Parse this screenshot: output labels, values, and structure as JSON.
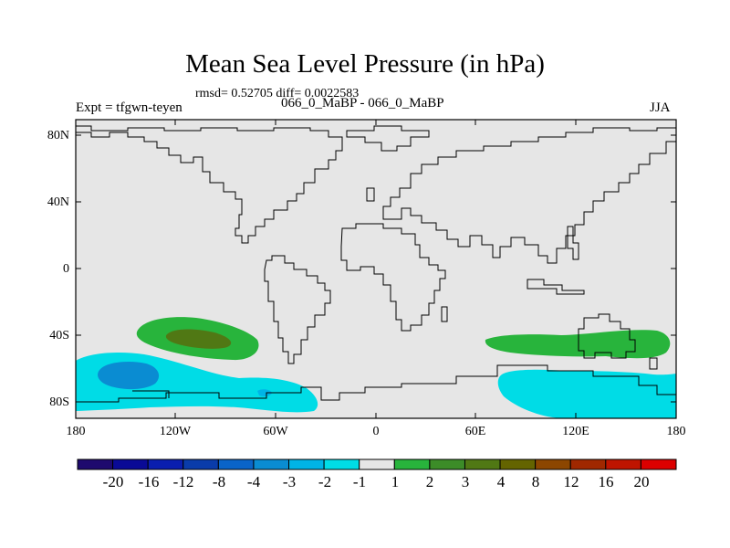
{
  "figure": {
    "title": "Mean Sea Level Pressure (in hPa)",
    "stats": "rmsd= 0.52705 diff= 0.0022583",
    "experiment": "Expt = tfgwn-teyen",
    "cases": "066_0_MaBP - 066_0_MaBP",
    "season": "JJA"
  },
  "axes": {
    "lat_ticks": [
      "80N",
      "40N",
      "0",
      "40S",
      "80S"
    ],
    "lon_ticks": [
      "180",
      "120W",
      "60W",
      "0",
      "60E",
      "120E",
      "180"
    ]
  },
  "colorbar": {
    "labels": [
      "-20",
      "-16",
      "-12",
      "-8",
      "-4",
      "-3",
      "-2",
      "-1",
      "1",
      "2",
      "3",
      "4",
      "8",
      "12",
      "16",
      "20"
    ],
    "colors": [
      "#1e0a6e",
      "#0a0a96",
      "#0a1eaf",
      "#0a3caa",
      "#0a64c8",
      "#0a8cd2",
      "#00b4e6",
      "#00dce6",
      "#e6e6e6",
      "#28b43c",
      "#3c8c28",
      "#507814",
      "#646400",
      "#8c4600",
      "#a02800",
      "#be1400",
      "#dc0000"
    ]
  },
  "map": {
    "background": "#e6e6e6",
    "coast_color": "#000000"
  }
}
